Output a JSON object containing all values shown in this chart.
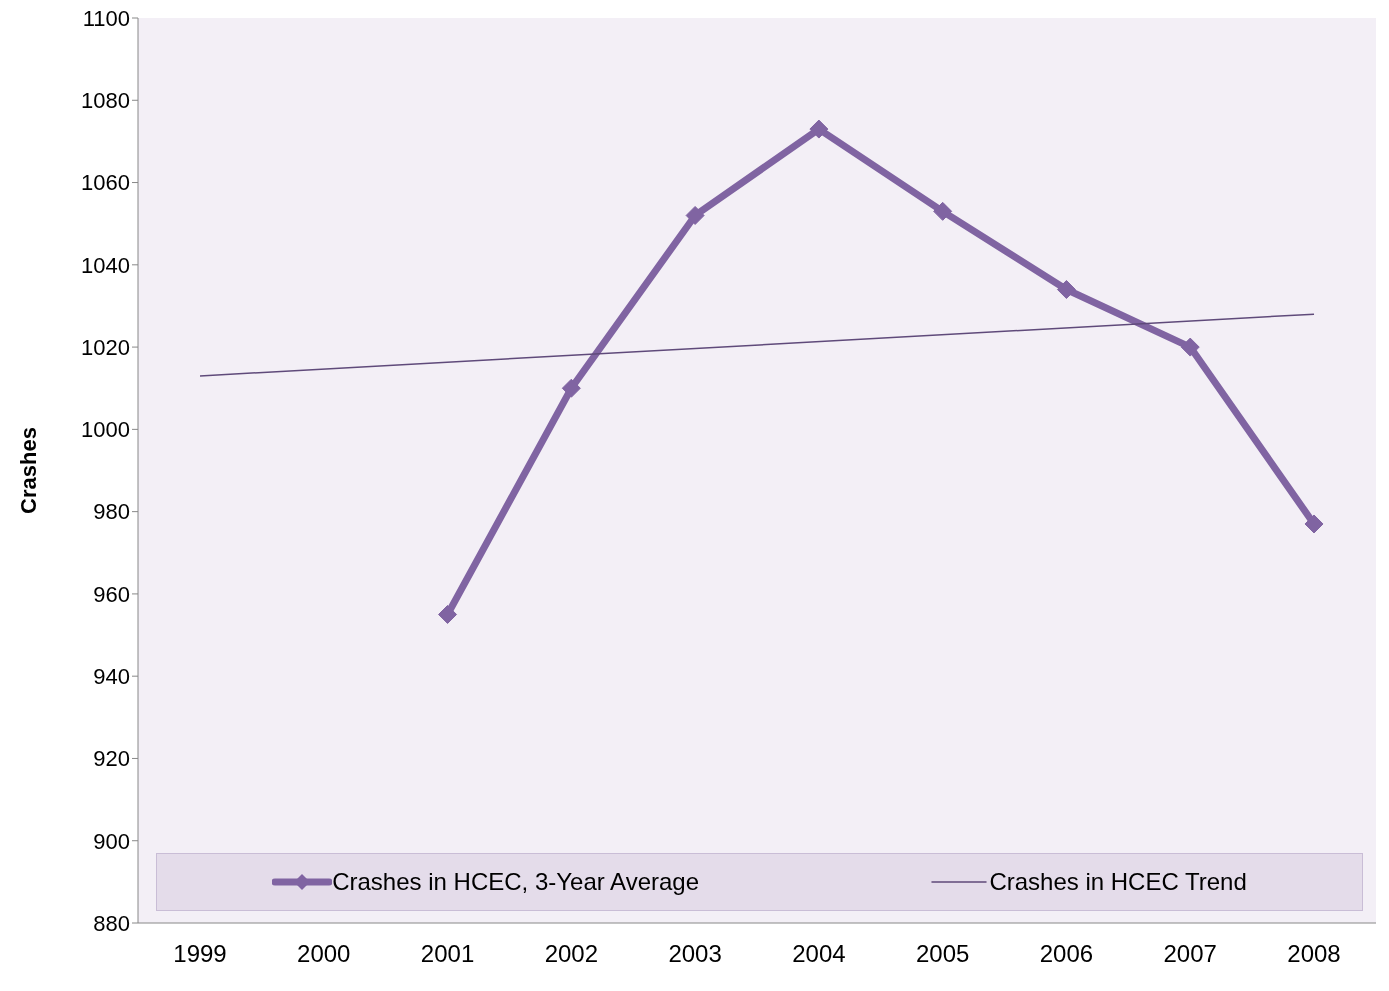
{
  "chart_data": {
    "type": "line",
    "ylabel": "Crashes",
    "categories": [
      "1999",
      "2000",
      "2001",
      "2002",
      "2003",
      "2004",
      "2005",
      "2006",
      "2007",
      "2008"
    ],
    "series": [
      {
        "name": "Crashes in HCEC, 3-Year Average",
        "color": "#8064a2",
        "marker": "diamond",
        "values": [
          null,
          null,
          955,
          1010,
          1052,
          1073,
          1053,
          1034,
          1020,
          977
        ]
      },
      {
        "name": "Crashes in HCEC Trend",
        "color": "#5f4a7a",
        "marker": "none",
        "values": [
          1013,
          null,
          null,
          null,
          null,
          null,
          null,
          null,
          null,
          1028
        ]
      }
    ],
    "ylim": [
      880,
      1100
    ],
    "yticks": [
      880,
      900,
      920,
      940,
      960,
      980,
      1000,
      1020,
      1040,
      1060,
      1080,
      1100
    ],
    "grid": false,
    "legend": "bottom"
  }
}
